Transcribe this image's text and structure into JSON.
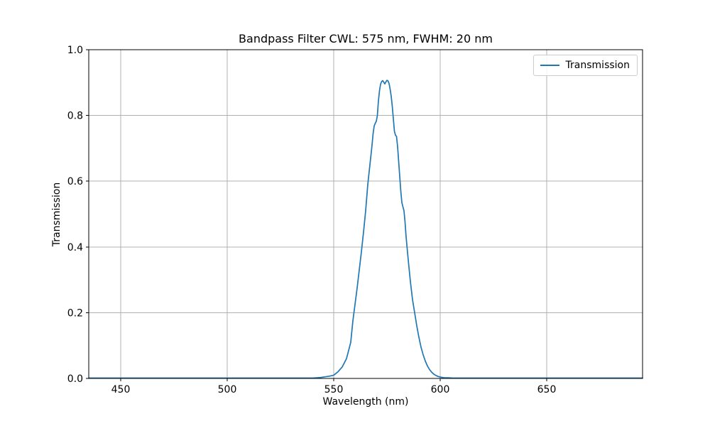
{
  "chart": {
    "title": "Bandpass Filter CWL: 575 nm, FWHM: 20 nm",
    "xlabel": "Wavelength (nm)",
    "ylabel": "Transmission",
    "legend": {
      "label": "Transmission",
      "position": "upper right"
    }
  },
  "colors": {
    "line": "#1f77b4",
    "grid": "#b0b0b0",
    "spine": "#000000",
    "legend_border": "#cccccc",
    "text": "#000000",
    "background": "#ffffff"
  },
  "chart_data": {
    "type": "line",
    "title": "Bandpass Filter CWL: 575 nm, FWHM: 20 nm",
    "xlabel": "Wavelength (nm)",
    "ylabel": "Transmission",
    "xlim": [
      435,
      695
    ],
    "ylim": [
      0.0,
      1.0
    ],
    "x_ticks": [
      450,
      500,
      550,
      600,
      650
    ],
    "x_tick_labels": [
      "450",
      "500",
      "550",
      "600",
      "650"
    ],
    "y_ticks": [
      0.0,
      0.2,
      0.4,
      0.6,
      0.8,
      1.0
    ],
    "y_tick_labels": [
      "0.0",
      "0.2",
      "0.4",
      "0.6",
      "0.8",
      "1.0"
    ],
    "grid": true,
    "legend_position": "upper right",
    "cwl_nm": 575,
    "fwhm_nm": 20,
    "peak_transmission": 0.907,
    "series": [
      {
        "name": "Transmission",
        "color": "#1f77b4",
        "x": [
          435,
          440,
          445,
          450,
          455,
          460,
          465,
          470,
          475,
          480,
          485,
          490,
          495,
          500,
          505,
          510,
          515,
          520,
          525,
          530,
          535,
          540,
          542,
          544,
          546,
          548,
          550,
          552,
          554,
          556,
          558,
          559,
          560,
          561,
          562,
          563,
          564,
          565,
          566,
          567,
          568,
          568.5,
          569,
          569.5,
          570,
          570.5,
          571,
          571.5,
          572,
          572.5,
          573,
          573.5,
          574,
          574.5,
          575,
          575.5,
          576,
          576.5,
          577,
          577.5,
          578,
          578.5,
          579,
          579.5,
          580,
          580.5,
          581,
          581.5,
          582,
          582.5,
          583,
          583.5,
          584,
          585,
          586,
          587,
          588,
          589,
          590,
          591,
          592,
          593,
          594,
          595,
          596,
          597,
          598,
          599,
          600,
          601,
          602,
          604,
          606,
          608,
          610,
          615,
          620,
          625,
          630,
          635,
          640,
          645,
          650,
          655,
          660,
          665,
          670,
          675,
          680,
          685,
          690,
          695
        ],
        "y": [
          0.001,
          0.001,
          0.001,
          0.001,
          0.001,
          0.001,
          0.001,
          0.001,
          0.001,
          0.001,
          0.001,
          0.001,
          0.001,
          0.001,
          0.001,
          0.001,
          0.001,
          0.001,
          0.001,
          0.001,
          0.001,
          0.001,
          0.002,
          0.003,
          0.005,
          0.007,
          0.01,
          0.02,
          0.035,
          0.06,
          0.11,
          0.175,
          0.225,
          0.275,
          0.33,
          0.385,
          0.445,
          0.51,
          0.59,
          0.65,
          0.71,
          0.745,
          0.768,
          0.776,
          0.782,
          0.8,
          0.845,
          0.875,
          0.895,
          0.903,
          0.906,
          0.901,
          0.896,
          0.902,
          0.907,
          0.905,
          0.897,
          0.88,
          0.858,
          0.828,
          0.79,
          0.752,
          0.74,
          0.736,
          0.705,
          0.66,
          0.615,
          0.57,
          0.535,
          0.522,
          0.51,
          0.475,
          0.43,
          0.36,
          0.295,
          0.24,
          0.2,
          0.16,
          0.125,
          0.095,
          0.072,
          0.053,
          0.038,
          0.027,
          0.019,
          0.013,
          0.009,
          0.006,
          0.004,
          0.003,
          0.002,
          0.002,
          0.001,
          0.001,
          0.001,
          0.001,
          0.001,
          0.001,
          0.001,
          0.001,
          0.001,
          0.001,
          0.001,
          0.001,
          0.001,
          0.001,
          0.001,
          0.001,
          0.001,
          0.001,
          0.001,
          0.001
        ]
      }
    ]
  }
}
